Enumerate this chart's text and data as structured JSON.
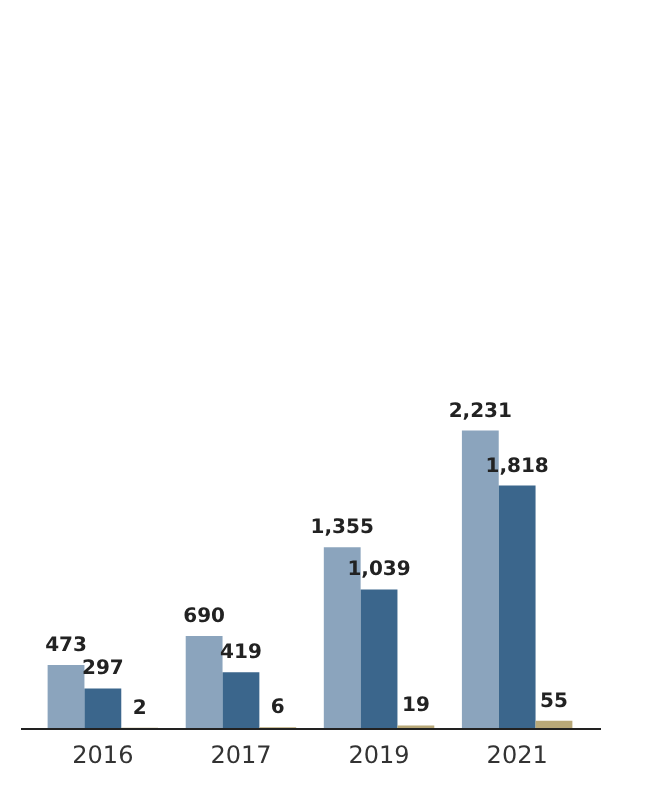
{
  "chart_data": {
    "type": "bar",
    "categories": [
      "2016",
      "2017",
      "2019",
      "2021"
    ],
    "series": [
      {
        "color": "#8ba4bd",
        "values": [
          473,
          690,
          1355,
          2231
        ],
        "value_labels": [
          "473",
          "690",
          "1,355",
          "2,231"
        ]
      },
      {
        "color": "#3b668c",
        "values": [
          297,
          419,
          1039,
          1818
        ],
        "value_labels": [
          "297",
          "419",
          "1,039",
          "1,818"
        ]
      },
      {
        "color": "#b8a878",
        "values": [
          2,
          6,
          19,
          55
        ],
        "value_labels": [
          "2",
          "6",
          "19",
          "55"
        ]
      }
    ],
    "grid": false,
    "tick_labels": "x"
  }
}
